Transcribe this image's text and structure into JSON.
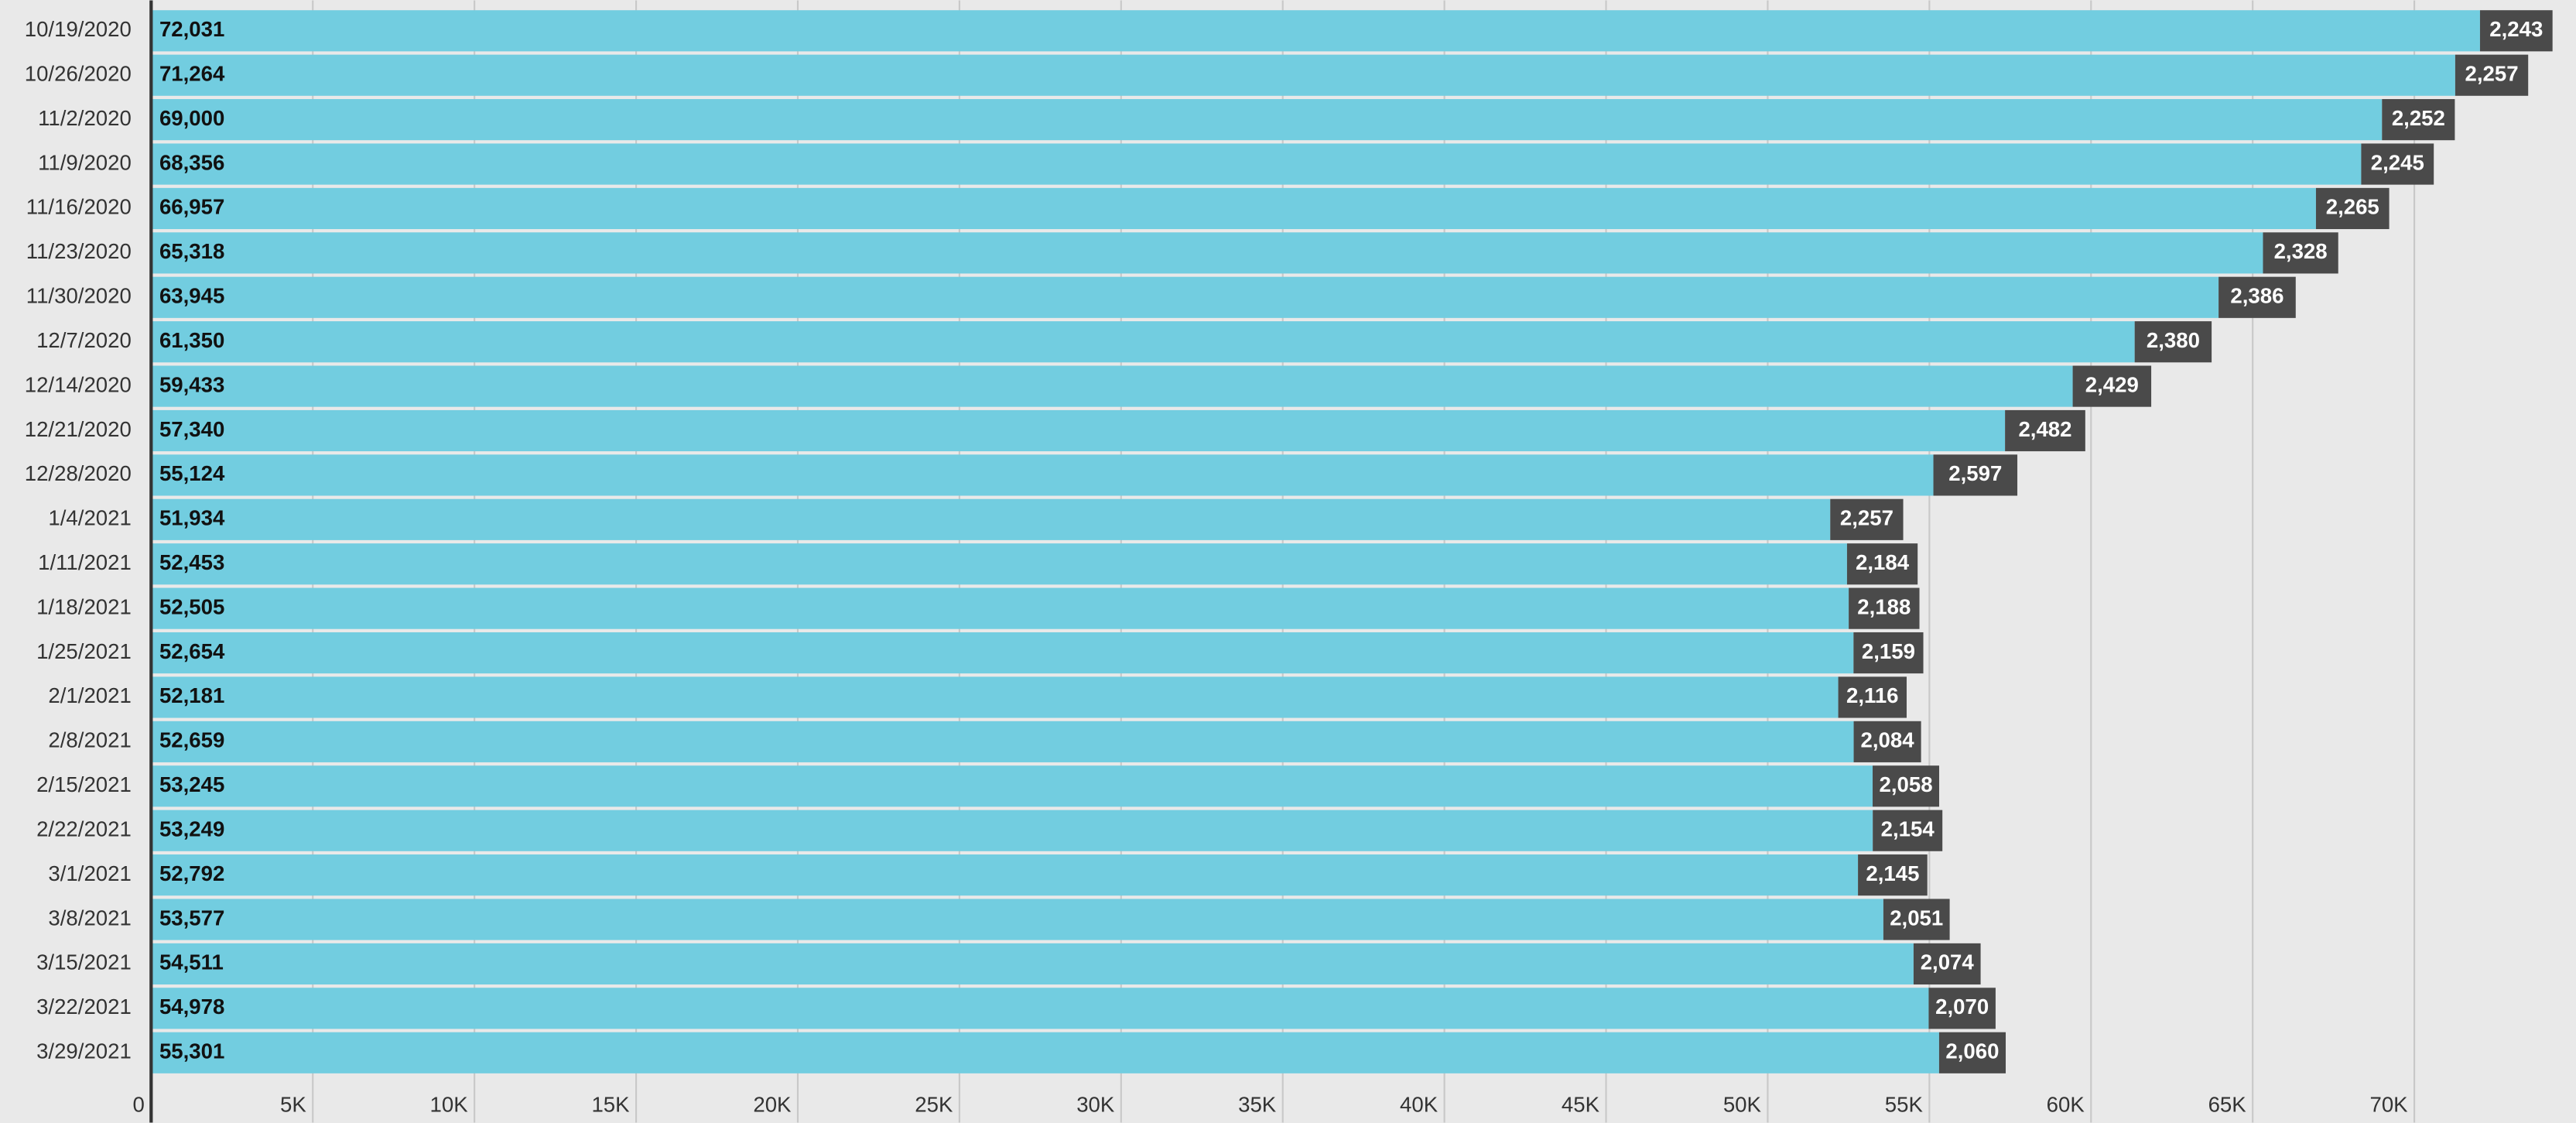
{
  "chart_data": {
    "type": "stacked-barh",
    "categories": [
      "10/19/2020",
      "10/26/2020",
      "11/2/2020",
      "11/9/2020",
      "11/16/2020",
      "11/23/2020",
      "11/30/2020",
      "12/7/2020",
      "12/14/2020",
      "12/21/2020",
      "12/28/2020",
      "1/4/2021",
      "1/11/2021",
      "1/18/2021",
      "1/25/2021",
      "2/1/2021",
      "2/8/2021",
      "2/15/2021",
      "2/22/2021",
      "3/1/2021",
      "3/8/2021",
      "3/15/2021",
      "3/22/2021",
      "3/29/2021"
    ],
    "series": [
      {
        "color": "#72cde0",
        "values": [
          72031,
          71264,
          69000,
          68356,
          66957,
          65318,
          63945,
          61350,
          59433,
          57340,
          55124,
          51934,
          52453,
          52505,
          52654,
          52181,
          52659,
          53245,
          53249,
          52792,
          53577,
          54511,
          54978,
          55301
        ],
        "value_labels": [
          "72,031",
          "71,264",
          "69,000",
          "68,356",
          "66,957",
          "65,318",
          "63,945",
          "61,350",
          "59,433",
          "57,340",
          "55,124",
          "51,934",
          "52,453",
          "52,505",
          "52,654",
          "52,181",
          "52,659",
          "53,245",
          "53,249",
          "52,792",
          "53,577",
          "54,511",
          "54,978",
          "55,301"
        ]
      },
      {
        "color": "#4a4a4a",
        "values": [
          2243,
          2257,
          2252,
          2245,
          2265,
          2328,
          2386,
          2380,
          2429,
          2482,
          2597,
          2257,
          2184,
          2188,
          2159,
          2116,
          2084,
          2058,
          2154,
          2145,
          2051,
          2074,
          2070,
          2060
        ],
        "value_labels": [
          "2,243",
          "2,257",
          "2,252",
          "2,245",
          "2,265",
          "2,328",
          "2,386",
          "2,380",
          "2,429",
          "2,482",
          "2,597",
          "2,257",
          "2,184",
          "2,188",
          "2,159",
          "2,116",
          "2,084",
          "2,058",
          "2,154",
          "2,145",
          "2,051",
          "2,074",
          "2,070",
          "2,060"
        ]
      }
    ],
    "xlim": [
      0,
      75000
    ],
    "xticks": [
      0,
      {
        "value": 5000,
        "label": "5K"
      },
      {
        "value": 10000,
        "label": "10K"
      },
      {
        "value": 15000,
        "label": "15K"
      },
      {
        "value": 20000,
        "label": "20K"
      },
      {
        "value": 25000,
        "label": "25K"
      },
      {
        "value": 30000,
        "label": "30K"
      },
      {
        "value": 35000,
        "label": "35K"
      },
      {
        "value": 40000,
        "label": "40K"
      },
      {
        "value": 45000,
        "label": "45K"
      },
      {
        "value": 50000,
        "label": "50K"
      },
      {
        "value": 55000,
        "label": "55K"
      },
      {
        "value": 60000,
        "label": "60K"
      },
      {
        "value": 65000,
        "label": "65K"
      },
      {
        "value": 70000,
        "label": "70K"
      }
    ],
    "grid": true
  }
}
